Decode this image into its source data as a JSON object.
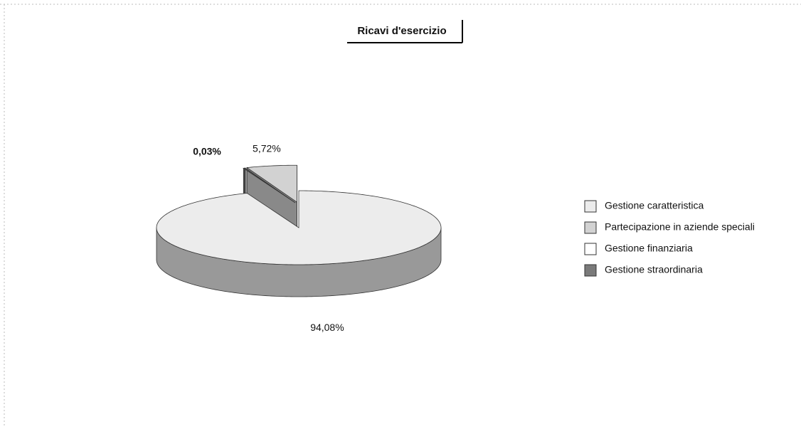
{
  "chart_data": {
    "type": "pie3d",
    "title": "Ricavi d'esercizio",
    "categories": [
      "Gestione caratteristica",
      "Partecipazione in aziende speciali",
      "Gestione finanziaria",
      "Gestione straordinaria"
    ],
    "values": [
      94.08,
      5.72,
      0.03,
      0.17
    ],
    "value_labels": [
      "94,08%",
      "5,72%",
      "0,03%",
      null
    ],
    "colors": [
      "#ececec",
      "#d2d2d2",
      "#ffffff",
      "#7a7a7a"
    ],
    "legend": "right"
  }
}
